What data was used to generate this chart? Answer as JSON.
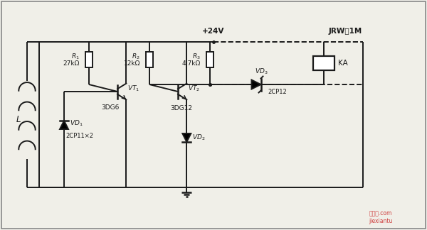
{
  "bg_color": "#f0efe8",
  "line_color": "#1a1a1a",
  "title": "",
  "components": {
    "R1_label": "R",
    "R2_label": "R",
    "R3_label": "R",
    "label_24V": "+24V",
    "label_JRW": "JRW－1M",
    "label_KA": "KA",
    "label_3DG6": "3DG6",
    "label_3DG12": "3DG12",
    "label_2CP12": "2CP12",
    "label_2CP11X2": "2CP11×2"
  },
  "watermark": "接线图.com\njiexiantu"
}
